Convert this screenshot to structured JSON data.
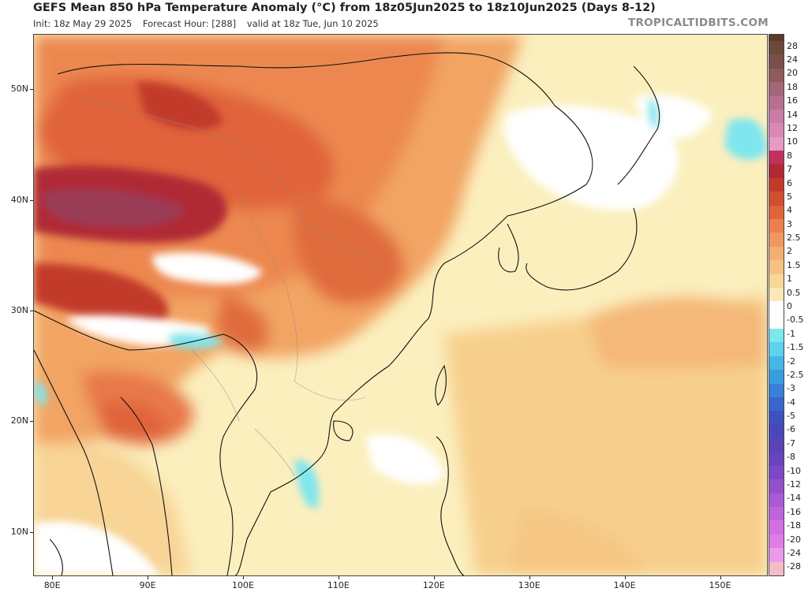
{
  "header": {
    "title": "GEFS Mean 850 hPa Temperature Anomaly (°C) from 18z05Jun2025 to 18z10Jun2025 (Days 8-12)",
    "init": "Init: 18z May 29 2025",
    "forecast_hour": "Forecast Hour: [288]",
    "valid": "valid at 18z Tue, Jun 10 2025",
    "watermark": "TROPICALTIDBITS.COM"
  },
  "map": {
    "lat_labels": [
      "50N",
      "40N",
      "30N",
      "20N",
      "10N"
    ],
    "lat_values": [
      50,
      40,
      30,
      20,
      10
    ],
    "lon_labels": [
      "80E",
      "90E",
      "100E",
      "110E",
      "120E",
      "130E",
      "140E",
      "150E"
    ],
    "lon_values": [
      80,
      90,
      100,
      110,
      120,
      130,
      140,
      150
    ],
    "lon_range": [
      78,
      155
    ],
    "lat_range": [
      6,
      55
    ]
  },
  "colorbar": {
    "labels": [
      "28",
      "24",
      "20",
      "18",
      "16",
      "14",
      "12",
      "10",
      "8",
      "7",
      "6",
      "5",
      "4",
      "3",
      "2.5",
      "2",
      "1.5",
      "1",
      "0.5",
      "0",
      "-0.5",
      "-1",
      "-1.5",
      "-2",
      "-2.5",
      "-3",
      "-4",
      "-5",
      "-6",
      "-7",
      "-8",
      "-10",
      "-12",
      "-14",
      "-16",
      "-18",
      "-20",
      "-24",
      "-28"
    ],
    "colors": [
      "#6b4a3a",
      "#7a5048",
      "#8f5a5a",
      "#a4647a",
      "#b87090",
      "#cc7aa6",
      "#d888b6",
      "#e49cc4",
      "#c0325e",
      "#b02a36",
      "#c23a2a",
      "#d24e30",
      "#e0643a",
      "#ea8050",
      "#f0985e",
      "#f4ae70",
      "#f6c282",
      "#f8d696",
      "#fbe8b6",
      "#ffffff",
      "#ffffff",
      "#7ee6ee",
      "#5cd2ec",
      "#46b6e6",
      "#3a9ce0",
      "#3a80d8",
      "#3a66cc",
      "#3c52be",
      "#4a48b8",
      "#5a44b6",
      "#6a44bc",
      "#7e48c4",
      "#9450cc",
      "#aa5ad4",
      "#c064dc",
      "#d270e2",
      "#e07ce8",
      "#ea9ae8",
      "#f4bcc8"
    ]
  }
}
